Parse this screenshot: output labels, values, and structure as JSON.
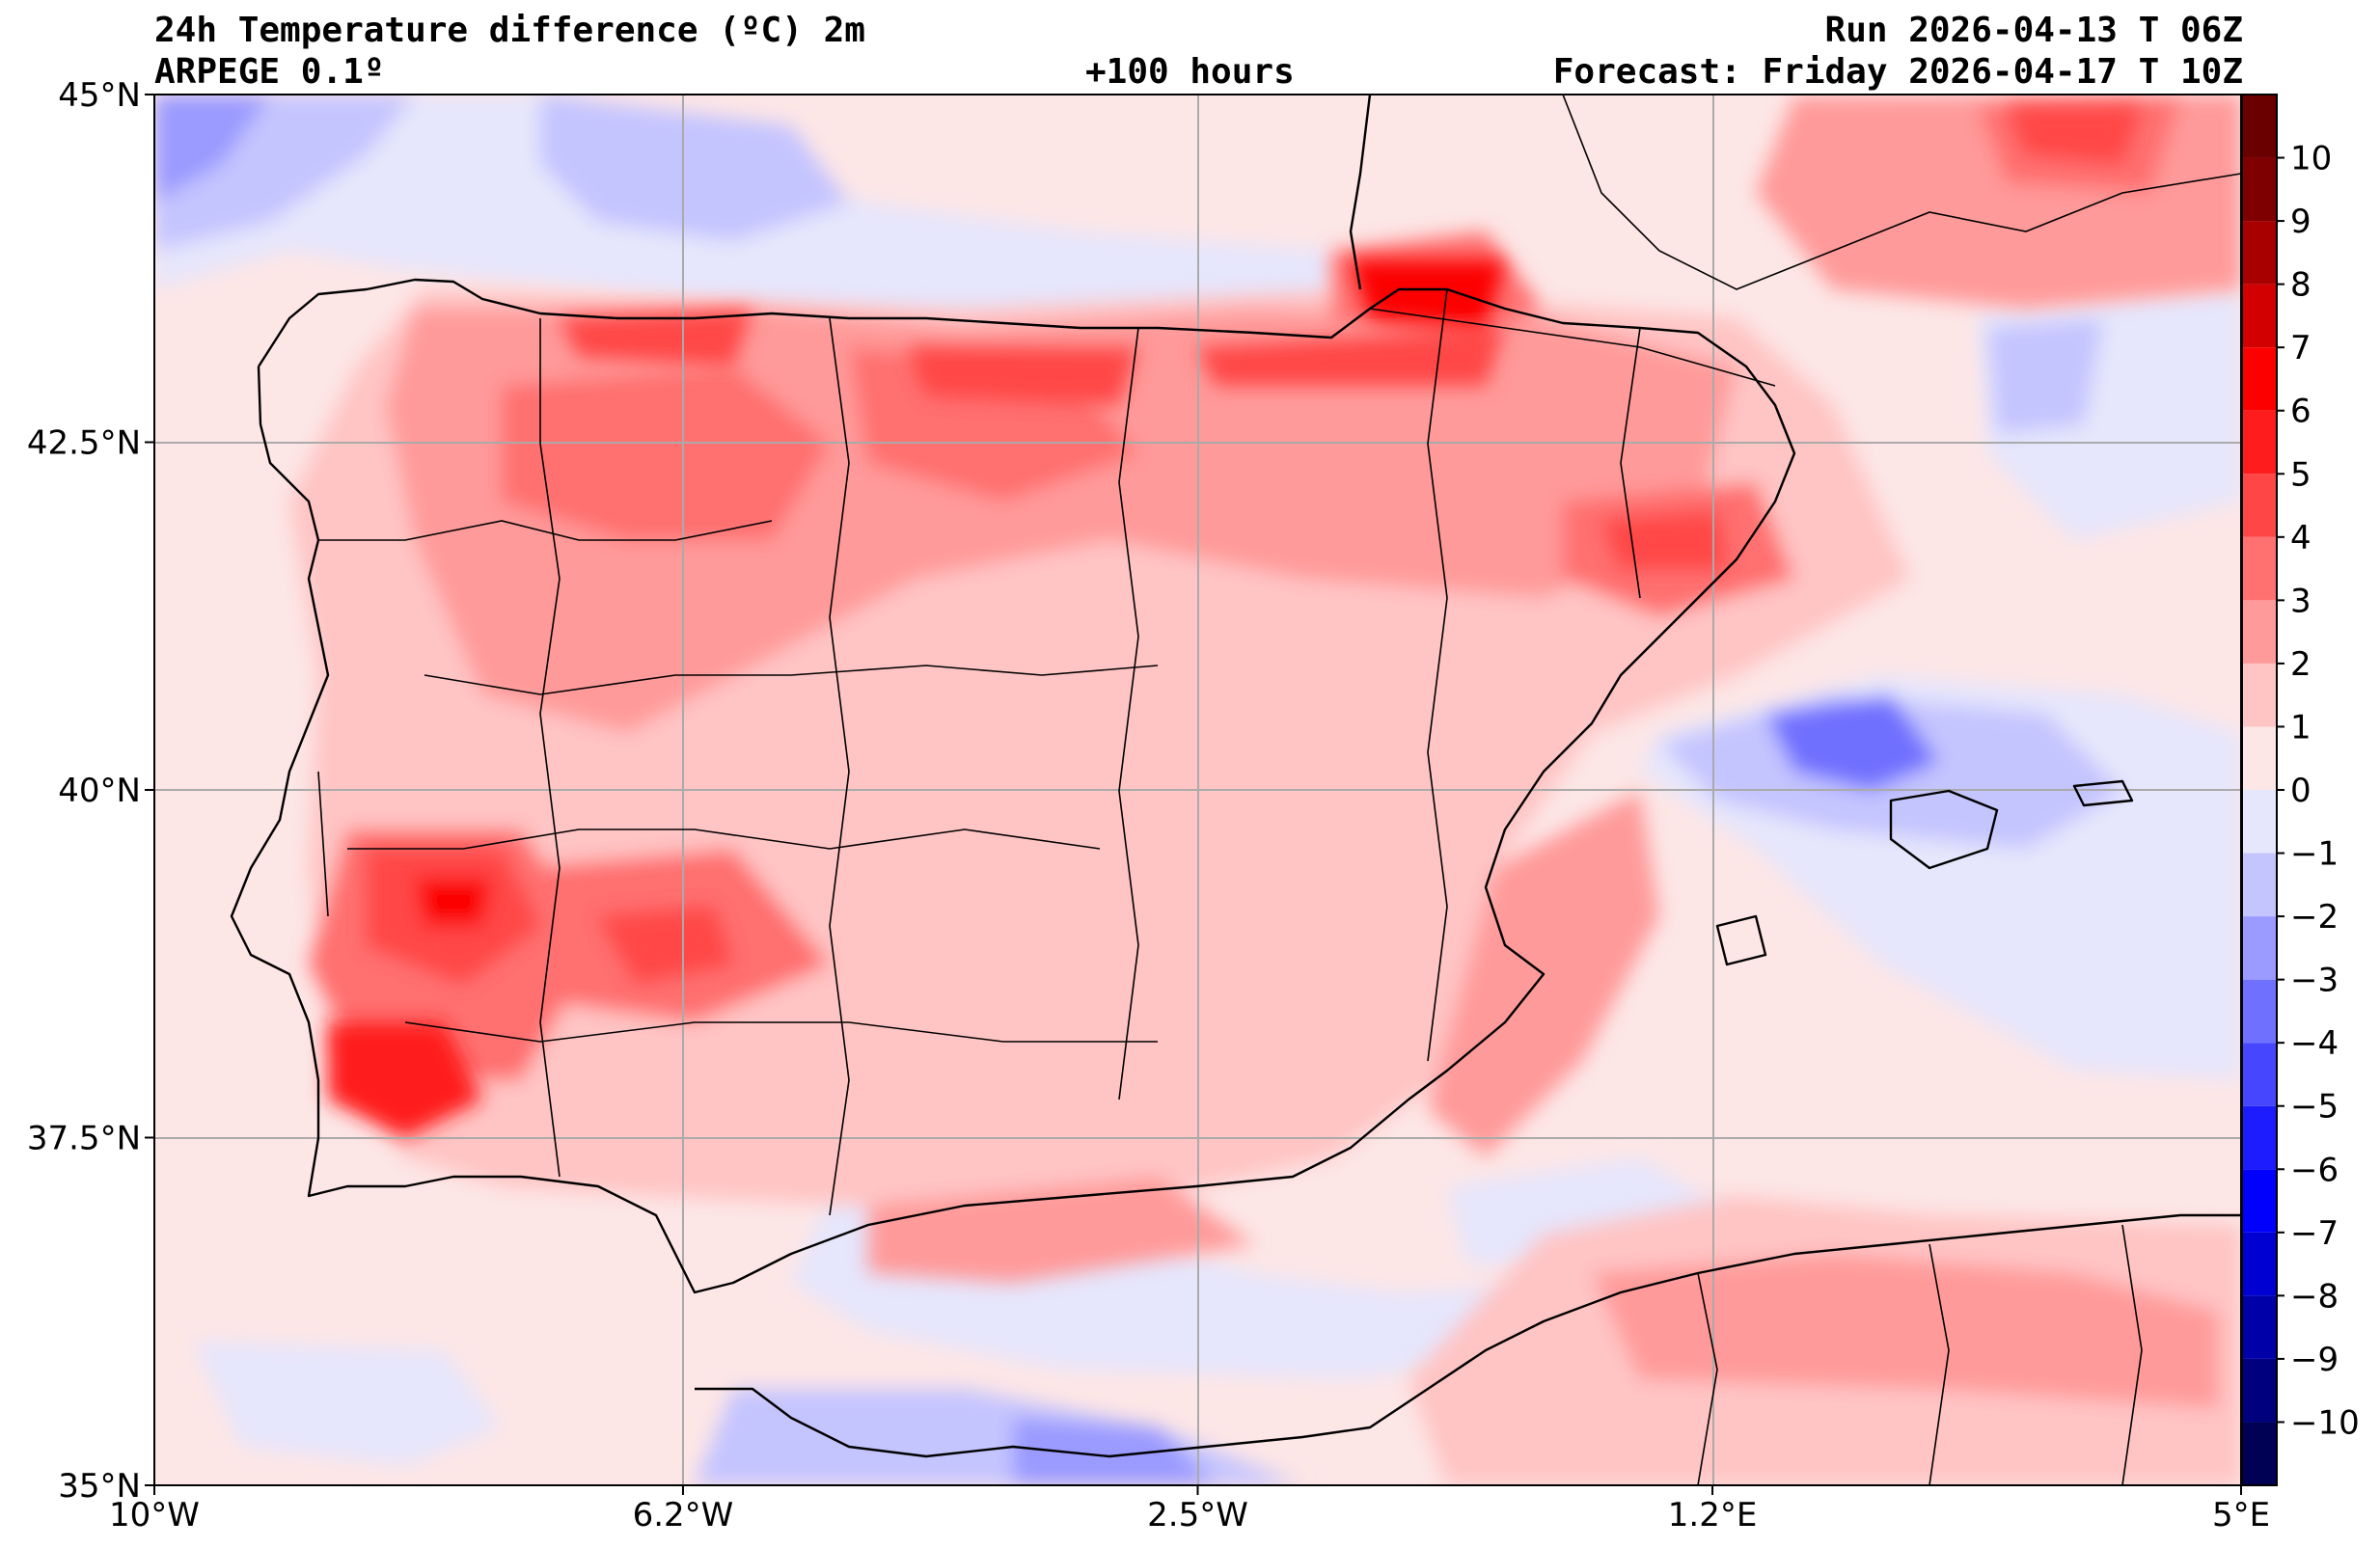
{
  "header": {
    "title": "24h Temperature difference (ºC) 2m",
    "model": "ARPEGE 0.1º",
    "lead": "+100 hours",
    "run": "Run 2026-04-13 T 06Z",
    "forecast": "Forecast: Friday 2026-04-17 T 10Z"
  },
  "map": {
    "lon_range": [
      -10,
      5
    ],
    "lat_range": [
      35,
      45
    ],
    "lat_ticks": [
      {
        "value": 45,
        "label": "45°N"
      },
      {
        "value": 42.5,
        "label": "42.5°N"
      },
      {
        "value": 40,
        "label": "40°N"
      },
      {
        "value": 37.5,
        "label": "37.5°N"
      },
      {
        "value": 35,
        "label": "35°N"
      }
    ],
    "lon_ticks": [
      {
        "value": -10,
        "label": "10°W"
      },
      {
        "value": -6.2,
        "label": "6.2°W"
      },
      {
        "value": -2.5,
        "label": "2.5°W"
      },
      {
        "value": 1.2,
        "label": "1.2°E"
      },
      {
        "value": 5,
        "label": "5°E"
      }
    ],
    "colors": {
      "ocean_neutral": "#fde6e6",
      "coast": "#000000",
      "grid": "#aaaaaa"
    }
  },
  "colorbar": {
    "levels": [
      -11,
      -10,
      -9,
      -8,
      -7,
      -6,
      -5,
      -4,
      -3,
      -2,
      -1,
      0,
      1,
      2,
      3,
      4,
      5,
      6,
      7,
      8,
      9,
      10,
      11
    ],
    "colors": [
      "#000055",
      "#00007f",
      "#0000a8",
      "#0000d2",
      "#0000fc",
      "#1c1cff",
      "#4646ff",
      "#7070ff",
      "#9a9aff",
      "#c4c4ff",
      "#e6e6fc",
      "#fde6e6",
      "#ffc4c4",
      "#ff9a9a",
      "#ff7070",
      "#ff4646",
      "#ff1c1c",
      "#fc0000",
      "#d20000",
      "#a80000",
      "#7f0000",
      "#6a0000"
    ],
    "labels": [
      "−10",
      "−9",
      "−8",
      "−7",
      "−6",
      "−5",
      "−4",
      "−3",
      "−2",
      "−1",
      "0",
      "1",
      "2",
      "3",
      "4",
      "5",
      "6",
      "7",
      "8",
      "9",
      "10"
    ],
    "label_values": [
      -10,
      -9,
      -8,
      -7,
      -6,
      -5,
      -4,
      -3,
      -2,
      -1,
      0,
      1,
      2,
      3,
      4,
      5,
      6,
      7,
      8,
      9,
      10
    ]
  }
}
